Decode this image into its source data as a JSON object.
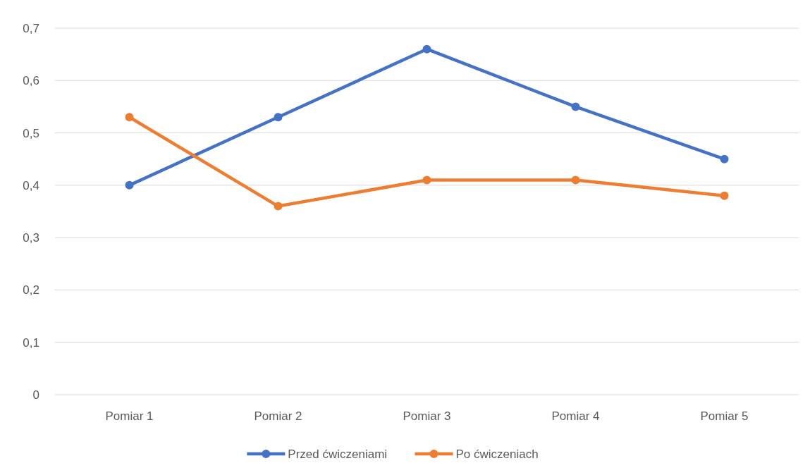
{
  "chart_data": {
    "type": "line",
    "categories": [
      "Pomiar 1",
      "Pomiar 2",
      "Pomiar 3",
      "Pomiar 4",
      "Pomiar 5"
    ],
    "series": [
      {
        "name": "Przed ćwiczeniami",
        "color": "#4472c4",
        "values": [
          0.4,
          0.53,
          0.66,
          0.55,
          0.45
        ]
      },
      {
        "name": "Po ćwiczeniach",
        "color": "#ed7d31",
        "values": [
          0.53,
          0.36,
          0.41,
          0.41,
          0.38
        ]
      }
    ],
    "ylim": [
      0,
      0.7
    ],
    "yticks": [
      {
        "value": 0,
        "label": "0"
      },
      {
        "value": 0.1,
        "label": "0,1"
      },
      {
        "value": 0.2,
        "label": "0,2"
      },
      {
        "value": 0.3,
        "label": "0,3"
      },
      {
        "value": 0.4,
        "label": "0,4"
      },
      {
        "value": 0.5,
        "label": "0,5"
      },
      {
        "value": 0.6,
        "label": "0,6"
      },
      {
        "value": 0.7,
        "label": "0,7"
      }
    ],
    "grid": "y",
    "legend": "bottom",
    "marker": "circle",
    "line_style": "solid"
  }
}
